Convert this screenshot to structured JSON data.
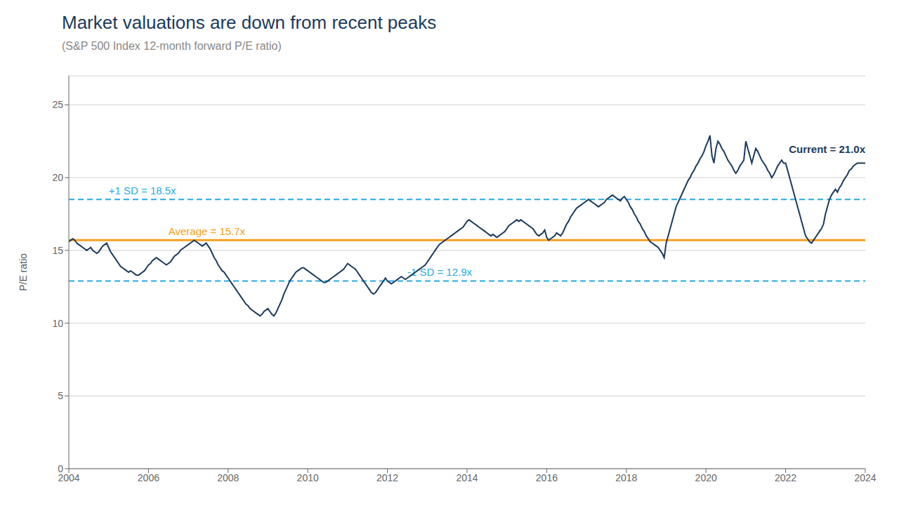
{
  "chart_data": {
    "type": "line",
    "title": "Market valuations are down from recent peaks",
    "subtitle": "(S&P 500 Index 12-month forward P/E ratio)",
    "y_label": "P/E ratio",
    "color": "#1b3a5c",
    "xlim": [
      2004,
      2024
    ],
    "xticks": [
      2004,
      2006,
      2008,
      2010,
      2012,
      2014,
      2016,
      2018,
      2020,
      2022,
      2024
    ],
    "ylim": [
      0,
      27
    ],
    "yticks": [
      0,
      5,
      10,
      15,
      20,
      25
    ],
    "grid": true,
    "reference_lines": [
      {
        "value": 15.7,
        "label": "Average = 15.7x",
        "color": "#f5a020",
        "line_style": "solid"
      },
      {
        "value": 18.5,
        "label": "+1 SD = 18.5x",
        "color": "#29aae1",
        "line_style": "dashed"
      },
      {
        "value": 12.9,
        "label": "-1 SD = 12.9x",
        "color": "#29aae1",
        "line_style": "dashed"
      }
    ],
    "annotations": [
      {
        "text": "Current = 21.0x",
        "value": 21.0,
        "color": "#1b3a5c"
      }
    ],
    "x": [
      2004.0,
      2004.05,
      2004.1,
      2004.15,
      2004.2,
      2004.25,
      2004.3,
      2004.35,
      2004.4,
      2004.45,
      2004.5,
      2004.55,
      2004.6,
      2004.65,
      2004.7,
      2004.75,
      2004.8,
      2004.85,
      2004.9,
      2004.95,
      2005.0,
      2005.05,
      2005.1,
      2005.15,
      2005.2,
      2005.25,
      2005.3,
      2005.35,
      2005.4,
      2005.45,
      2005.5,
      2005.55,
      2005.6,
      2005.65,
      2005.7,
      2005.75,
      2005.8,
      2005.85,
      2005.9,
      2005.95,
      2006.0,
      2006.05,
      2006.1,
      2006.15,
      2006.2,
      2006.25,
      2006.3,
      2006.35,
      2006.4,
      2006.45,
      2006.5,
      2006.55,
      2006.6,
      2006.65,
      2006.7,
      2006.75,
      2006.8,
      2006.85,
      2006.9,
      2006.95,
      2007.0,
      2007.05,
      2007.1,
      2007.15,
      2007.2,
      2007.25,
      2007.3,
      2007.35,
      2007.4,
      2007.45,
      2007.5,
      2007.55,
      2007.6,
      2007.65,
      2007.7,
      2007.75,
      2007.8,
      2007.85,
      2007.9,
      2007.95,
      2008.0,
      2008.05,
      2008.1,
      2008.15,
      2008.2,
      2008.25,
      2008.3,
      2008.35,
      2008.4,
      2008.45,
      2008.5,
      2008.55,
      2008.6,
      2008.65,
      2008.7,
      2008.75,
      2008.8,
      2008.85,
      2008.9,
      2008.95,
      2009.0,
      2009.05,
      2009.1,
      2009.15,
      2009.2,
      2009.25,
      2009.3,
      2009.35,
      2009.4,
      2009.45,
      2009.5,
      2009.55,
      2009.6,
      2009.65,
      2009.7,
      2009.75,
      2009.8,
      2009.85,
      2009.9,
      2009.95,
      2010.0,
      2010.05,
      2010.1,
      2010.15,
      2010.2,
      2010.25,
      2010.3,
      2010.35,
      2010.4,
      2010.45,
      2010.5,
      2010.55,
      2010.6,
      2010.65,
      2010.7,
      2010.75,
      2010.8,
      2010.85,
      2010.9,
      2010.95,
      2011.0,
      2011.05,
      2011.1,
      2011.15,
      2011.2,
      2011.25,
      2011.3,
      2011.35,
      2011.4,
      2011.45,
      2011.5,
      2011.55,
      2011.6,
      2011.65,
      2011.7,
      2011.75,
      2011.8,
      2011.85,
      2011.9,
      2011.95,
      2012.0,
      2012.05,
      2012.1,
      2012.15,
      2012.2,
      2012.25,
      2012.3,
      2012.35,
      2012.4,
      2012.45,
      2012.5,
      2012.55,
      2012.6,
      2012.65,
      2012.7,
      2012.75,
      2012.8,
      2012.85,
      2012.9,
      2012.95,
      2013.0,
      2013.05,
      2013.1,
      2013.15,
      2013.2,
      2013.25,
      2013.3,
      2013.35,
      2013.4,
      2013.45,
      2013.5,
      2013.55,
      2013.6,
      2013.65,
      2013.7,
      2013.75,
      2013.8,
      2013.85,
      2013.9,
      2013.95,
      2014.0,
      2014.05,
      2014.1,
      2014.15,
      2014.2,
      2014.25,
      2014.3,
      2014.35,
      2014.4,
      2014.45,
      2014.5,
      2014.55,
      2014.6,
      2014.65,
      2014.7,
      2014.75,
      2014.8,
      2014.85,
      2014.9,
      2014.95,
      2015.0,
      2015.05,
      2015.1,
      2015.15,
      2015.2,
      2015.25,
      2015.3,
      2015.35,
      2015.4,
      2015.45,
      2015.5,
      2015.55,
      2015.6,
      2015.65,
      2015.7,
      2015.75,
      2015.8,
      2015.85,
      2015.9,
      2015.95,
      2016.0,
      2016.05,
      2016.1,
      2016.15,
      2016.2,
      2016.25,
      2016.3,
      2016.35,
      2016.4,
      2016.45,
      2016.5,
      2016.55,
      2016.6,
      2016.65,
      2016.7,
      2016.75,
      2016.8,
      2016.85,
      2016.9,
      2016.95,
      2017.0,
      2017.05,
      2017.1,
      2017.15,
      2017.2,
      2017.25,
      2017.3,
      2017.35,
      2017.4,
      2017.45,
      2017.5,
      2017.55,
      2017.6,
      2017.65,
      2017.7,
      2017.75,
      2017.8,
      2017.85,
      2017.9,
      2017.95,
      2018.0,
      2018.05,
      2018.1,
      2018.15,
      2018.2,
      2018.25,
      2018.3,
      2018.35,
      2018.4,
      2018.45,
      2018.5,
      2018.55,
      2018.6,
      2018.65,
      2018.7,
      2018.75,
      2018.8,
      2018.85,
      2018.9,
      2018.95,
      2019.0,
      2019.05,
      2019.1,
      2019.15,
      2019.2,
      2019.25,
      2019.3,
      2019.35,
      2019.4,
      2019.45,
      2019.5,
      2019.55,
      2019.6,
      2019.65,
      2019.7,
      2019.75,
      2019.8,
      2019.85,
      2019.9,
      2019.95,
      2020.0,
      2020.05,
      2020.1,
      2020.15,
      2020.2,
      2020.25,
      2020.3,
      2020.35,
      2020.4,
      2020.45,
      2020.5,
      2020.55,
      2020.6,
      2020.65,
      2020.7,
      2020.75,
      2020.8,
      2020.85,
      2020.9,
      2020.95,
      2021.0,
      2021.05,
      2021.1,
      2021.15,
      2021.2,
      2021.25,
      2021.3,
      2021.35,
      2021.4,
      2021.45,
      2021.5,
      2021.55,
      2021.6,
      2021.65,
      2021.7,
      2021.75,
      2021.8,
      2021.85,
      2021.9,
      2021.95,
      2022.0,
      2022.05,
      2022.1,
      2022.15,
      2022.2,
      2022.25,
      2022.3,
      2022.35,
      2022.4,
      2022.45,
      2022.5,
      2022.55,
      2022.6,
      2022.65,
      2022.7,
      2022.75,
      2022.8,
      2022.85,
      2022.9,
      2022.95,
      2023.0,
      2023.05,
      2023.1,
      2023.15,
      2023.2,
      2023.25,
      2023.3,
      2023.35,
      2023.4,
      2023.45,
      2023.5,
      2023.55,
      2023.6,
      2023.65,
      2023.7,
      2023.75,
      2023.8,
      2023.85,
      2023.9,
      2023.95,
      2024.0
    ],
    "values": [
      15.6,
      15.7,
      15.8,
      15.7,
      15.5,
      15.4,
      15.3,
      15.2,
      15.1,
      15.0,
      15.1,
      15.2,
      15.0,
      14.9,
      14.8,
      14.9,
      15.1,
      15.3,
      15.4,
      15.5,
      15.2,
      14.9,
      14.7,
      14.5,
      14.3,
      14.1,
      13.9,
      13.8,
      13.7,
      13.6,
      13.5,
      13.6,
      13.5,
      13.4,
      13.3,
      13.3,
      13.4,
      13.5,
      13.6,
      13.8,
      14.0,
      14.1,
      14.3,
      14.4,
      14.5,
      14.4,
      14.3,
      14.2,
      14.1,
      14.0,
      14.1,
      14.2,
      14.4,
      14.6,
      14.7,
      14.8,
      15.0,
      15.1,
      15.2,
      15.3,
      15.4,
      15.5,
      15.6,
      15.7,
      15.6,
      15.5,
      15.4,
      15.3,
      15.4,
      15.5,
      15.3,
      15.1,
      14.8,
      14.5,
      14.3,
      14.0,
      13.8,
      13.6,
      13.5,
      13.3,
      13.1,
      12.9,
      12.7,
      12.5,
      12.3,
      12.1,
      11.9,
      11.7,
      11.5,
      11.3,
      11.2,
      11.0,
      10.9,
      10.8,
      10.7,
      10.6,
      10.5,
      10.6,
      10.8,
      10.9,
      11.0,
      10.8,
      10.6,
      10.5,
      10.7,
      11.0,
      11.3,
      11.6,
      12.0,
      12.3,
      12.6,
      12.9,
      13.1,
      13.3,
      13.5,
      13.6,
      13.7,
      13.8,
      13.8,
      13.7,
      13.6,
      13.5,
      13.4,
      13.3,
      13.2,
      13.1,
      13.0,
      12.9,
      12.8,
      12.8,
      12.9,
      13.0,
      13.1,
      13.2,
      13.3,
      13.4,
      13.5,
      13.6,
      13.7,
      13.9,
      14.1,
      14.0,
      13.9,
      13.8,
      13.7,
      13.5,
      13.3,
      13.1,
      12.9,
      12.7,
      12.5,
      12.3,
      12.1,
      12.0,
      12.1,
      12.3,
      12.5,
      12.7,
      12.9,
      13.1,
      12.9,
      12.8,
      12.7,
      12.8,
      12.9,
      13.0,
      13.1,
      13.2,
      13.1,
      13.0,
      13.1,
      13.2,
      13.3,
      13.4,
      13.5,
      13.6,
      13.7,
      13.8,
      13.9,
      14.0,
      14.2,
      14.4,
      14.6,
      14.8,
      15.0,
      15.2,
      15.4,
      15.5,
      15.6,
      15.7,
      15.8,
      15.9,
      16.0,
      16.1,
      16.2,
      16.3,
      16.4,
      16.5,
      16.6,
      16.8,
      17.0,
      17.1,
      17.0,
      16.9,
      16.8,
      16.7,
      16.6,
      16.5,
      16.4,
      16.3,
      16.2,
      16.1,
      16.0,
      16.1,
      16.0,
      15.9,
      16.0,
      16.1,
      16.2,
      16.3,
      16.5,
      16.7,
      16.8,
      16.9,
      17.0,
      17.1,
      17.0,
      17.1,
      17.0,
      16.9,
      16.8,
      16.7,
      16.6,
      16.5,
      16.3,
      16.1,
      16.0,
      16.1,
      16.2,
      16.4,
      15.9,
      15.7,
      15.8,
      15.9,
      16.0,
      16.2,
      16.1,
      16.0,
      16.2,
      16.5,
      16.8,
      17.0,
      17.3,
      17.5,
      17.7,
      17.9,
      18.0,
      18.1,
      18.2,
      18.3,
      18.4,
      18.5,
      18.4,
      18.3,
      18.2,
      18.1,
      18.0,
      18.1,
      18.2,
      18.3,
      18.5,
      18.6,
      18.7,
      18.8,
      18.7,
      18.6,
      18.5,
      18.4,
      18.6,
      18.7,
      18.5,
      18.3,
      18.0,
      17.8,
      17.5,
      17.3,
      17.0,
      16.8,
      16.5,
      16.3,
      16.0,
      15.8,
      15.6,
      15.5,
      15.4,
      15.3,
      15.2,
      15.0,
      14.8,
      14.5,
      15.5,
      16.0,
      16.5,
      17.0,
      17.5,
      18.0,
      18.3,
      18.6,
      18.9,
      19.2,
      19.5,
      19.8,
      20.0,
      20.3,
      20.5,
      20.8,
      21.0,
      21.3,
      21.5,
      21.8,
      22.2,
      22.5,
      22.9,
      21.5,
      21.0,
      22.0,
      22.5,
      22.3,
      22.0,
      21.8,
      21.5,
      21.2,
      21.0,
      20.8,
      20.5,
      20.3,
      20.5,
      20.8,
      21.0,
      21.2,
      22.5,
      22.0,
      21.5,
      21.0,
      21.5,
      22.0,
      21.8,
      21.5,
      21.2,
      21.0,
      20.8,
      20.5,
      20.3,
      20.0,
      20.2,
      20.5,
      20.8,
      21.0,
      21.2,
      21.0,
      21.0,
      20.5,
      20.0,
      19.5,
      19.0,
      18.5,
      18.0,
      17.5,
      17.0,
      16.5,
      16.0,
      15.8,
      15.6,
      15.5,
      15.7,
      15.9,
      16.1,
      16.3,
      16.5,
      16.8,
      17.5,
      18.0,
      18.5,
      18.8,
      19.0,
      19.2,
      19.0,
      19.3,
      19.5,
      19.8,
      20.0,
      20.2,
      20.5,
      20.6,
      20.8,
      20.9,
      21.0,
      21.0,
      21.0,
      21.0,
      21.0
    ]
  }
}
